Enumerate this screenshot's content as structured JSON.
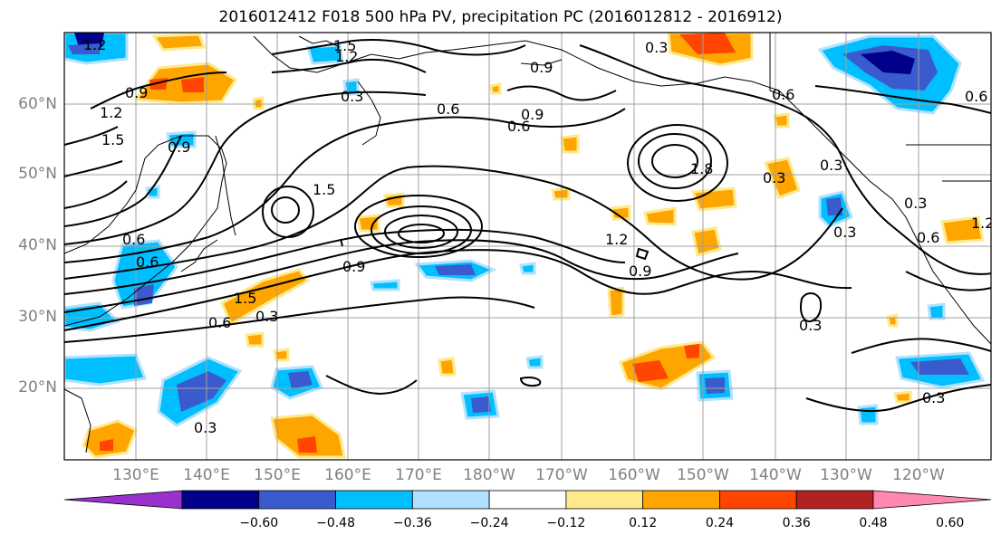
{
  "title": "2016012412 F018 500 hPa PV, precipitation PC (2016012812 - 2016912)",
  "lat_labels": [
    "60°N",
    "50°N",
    "40°N",
    "30°N",
    "20°N"
  ],
  "lon_labels": [
    "130°E",
    "140°E",
    "150°E",
    "160°E",
    "170°E",
    "180°W",
    "170°W",
    "160°W",
    "150°W",
    "140°W",
    "130°W",
    "120°W"
  ],
  "colorbar": {
    "ticks": [
      "−0.60",
      "−0.48",
      "−0.36",
      "−0.24",
      "−0.12",
      "0.12",
      "0.24",
      "0.36",
      "0.48",
      "0.60"
    ],
    "colors": [
      "#9932cc",
      "#00008b",
      "#3a5bcd",
      "#00bfff",
      "#b0e2ff",
      "#ffffff",
      "#ffe98c",
      "#ffa500",
      "#ff4500",
      "#b22222",
      "#ff88b0"
    ]
  },
  "contour_labels": [
    "1.2",
    "1.5",
    "1.2",
    "0.9",
    "0.3",
    "1.2",
    "0.6",
    "0.9",
    "0.6",
    "1.5",
    "0.9",
    "0.3",
    "1.8",
    "0.3",
    "0.3",
    "0.6",
    "0.3",
    "1.5",
    "0.9",
    "0.6",
    "0.3",
    "1.2",
    "0.9",
    "0.3",
    "0.3",
    "0.6",
    "0.9",
    "1.5",
    "0.6",
    "0.6",
    "1.2",
    "0.6",
    "0.3",
    "0.3"
  ]
}
